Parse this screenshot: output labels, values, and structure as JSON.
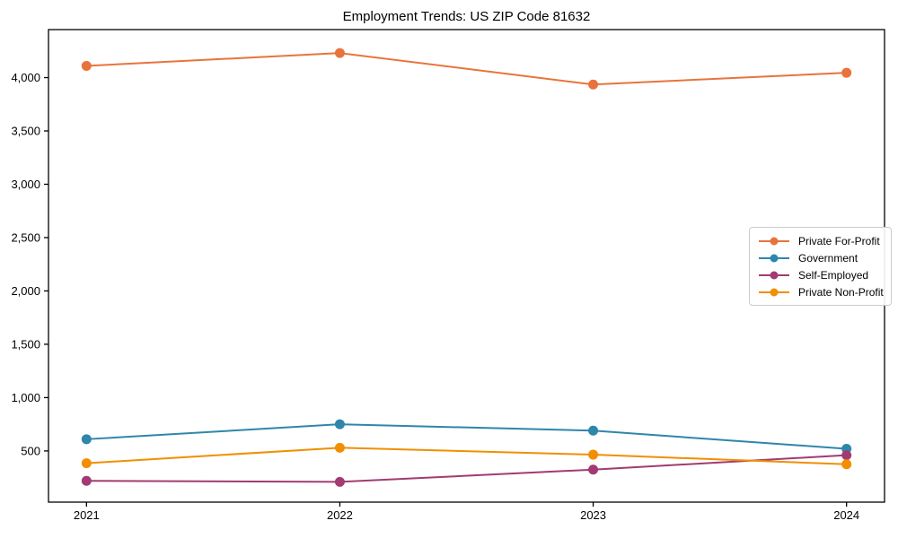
{
  "chart_data": {
    "type": "line",
    "title": "Employment Trends: US ZIP Code 81632",
    "categories": [
      "2021",
      "2022",
      "2023",
      "2024"
    ],
    "series": [
      {
        "name": "Private For-Profit",
        "color": "#E8743B",
        "values": [
          4110,
          4230,
          3935,
          4045
        ]
      },
      {
        "name": "Government",
        "color": "#2E86AB",
        "values": [
          610,
          750,
          690,
          520
        ]
      },
      {
        "name": "Self-Employed",
        "color": "#A23B72",
        "values": [
          220,
          210,
          325,
          460
        ]
      },
      {
        "name": "Private Non-Profit",
        "color": "#F18F01",
        "values": [
          385,
          530,
          465,
          375
        ]
      }
    ],
    "xlabel": "",
    "ylabel": "",
    "ylim": [
      20,
      4450
    ],
    "yticks": [
      500,
      1000,
      1500,
      2000,
      2500,
      3000,
      3500,
      4000
    ],
    "ytick_labels": [
      "500",
      "1,000",
      "1,500",
      "2,000",
      "2,500",
      "3,000",
      "3,500",
      "4,000"
    ],
    "grid": false,
    "legend_position": "center-right",
    "axis_color": "#000000",
    "background": "#ffffff",
    "marker": "circle",
    "line_width": 2
  }
}
